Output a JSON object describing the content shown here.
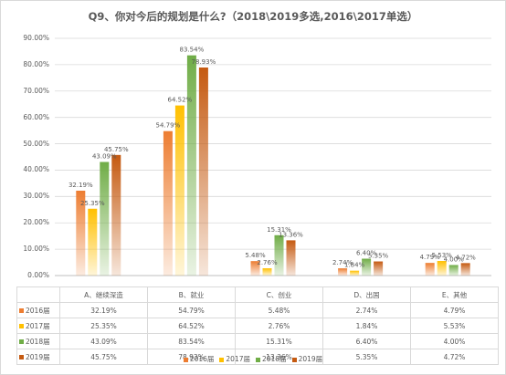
{
  "chart_data": {
    "type": "bar",
    "title": "Q9、你对今后的规划是什么?（2018\\2019多选,2016\\2017单选）",
    "categories": [
      "A、继续深造",
      "B、就业",
      "C、创业",
      "D、出国",
      "E、其他"
    ],
    "ylim": [
      0,
      90
    ],
    "yticks": [
      "0.00%",
      "10.00%",
      "20.00%",
      "30.00%",
      "40.00%",
      "50.00%",
      "60.00%",
      "70.00%",
      "80.00%",
      "90.00%"
    ],
    "grid": true,
    "legend_position": "bottom",
    "series": [
      {
        "name": "2016届",
        "color": "#ed7d31",
        "values": [
          32.19,
          54.79,
          5.48,
          2.74,
          4.79
        ],
        "labels": [
          "32.19%",
          "54.79%",
          "5.48%",
          "2.74%",
          "4.79%"
        ],
        "table": [
          "32.19%",
          "54.79%",
          "5.48%",
          "2.74%",
          "4.79%"
        ]
      },
      {
        "name": "2017届",
        "color": "#ffc000",
        "values": [
          25.35,
          64.52,
          2.76,
          1.84,
          5.53
        ],
        "labels": [
          "25.35%",
          "64.52%",
          "2.76%",
          "1.84%",
          "5.53%"
        ],
        "table": [
          "25.35%",
          "64.52%",
          "2.76%",
          "1.84%",
          "5.53%"
        ]
      },
      {
        "name": "2018届",
        "color": "#70ad47",
        "values": [
          43.09,
          83.54,
          15.31,
          6.4,
          4.0
        ],
        "labels": [
          "43.09%",
          "83.54%",
          "15.31%",
          "6.40%",
          "4.00%"
        ],
        "table": [
          "43.09%",
          "83.54%",
          "15.31%",
          "6.40%",
          "4.00%"
        ]
      },
      {
        "name": "2019届",
        "color": "#c55a11",
        "values": [
          45.75,
          78.93,
          13.36,
          5.35,
          4.72
        ],
        "labels": [
          "45.75%",
          "78.93%",
          "13.36%",
          "5.35%",
          "4.72%"
        ],
        "table": [
          "45.75%",
          "78.93%",
          "13.36%",
          "5.35%",
          "4.72%"
        ]
      }
    ]
  }
}
